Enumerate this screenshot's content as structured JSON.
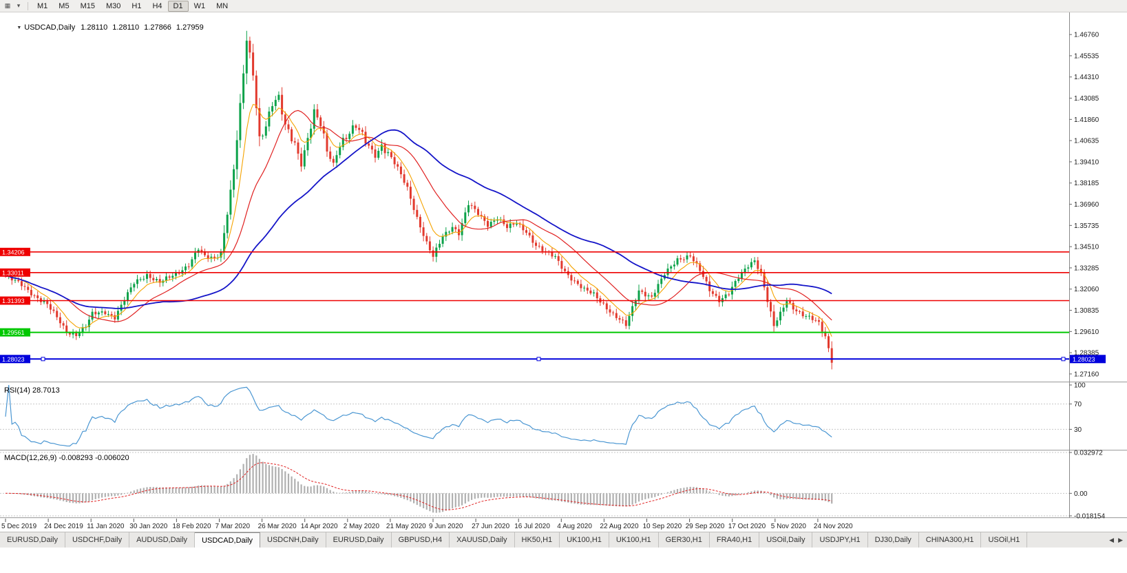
{
  "icons": {
    "collapse": "▼",
    "toolbar_chart": "▦",
    "toolbar_menu": "▾",
    "tab_scroll_left": "◀",
    "tab_scroll_right": "▶"
  },
  "toolbar": {
    "timeframes": [
      "M1",
      "M5",
      "M15",
      "M30",
      "H1",
      "H4",
      "D1",
      "W1",
      "MN"
    ],
    "active_timeframe": "D1"
  },
  "chart": {
    "title": "USDCAD,Daily",
    "ohlc": {
      "open": "1.28110",
      "high": "1.28110",
      "low": "1.27866",
      "close": "1.27959"
    }
  },
  "indicators": {
    "rsi_label": "RSI(14) 28.7013",
    "macd_label": "MACD(12,26,9) -0.008293 -0.006020"
  },
  "tabbar": {
    "active_index": 3,
    "tabs": [
      "EURUSD,Daily",
      "USDCHF,Daily",
      "AUDUSD,Daily",
      "USDCAD,Daily",
      "USDCNH,Daily",
      "EURUSD,Daily",
      "GBPUSD,H4",
      "XAUUSD,Daily",
      "HK50,H1",
      "UK100,H1",
      "UK100,H1",
      "GER30,H1",
      "FRA40,H1",
      "USOil,Daily",
      "USDJPY,H1",
      "DJ30,Daily",
      "CHINA300,H1",
      "USOil,H1"
    ]
  },
  "chart_data": {
    "type": "candlestick",
    "symbol": "USDCAD",
    "timeframe": "Daily",
    "candle_count": 258,
    "price_range": {
      "top": 1.478,
      "bottom": 1.268
    },
    "price_ticks": [
      "1.46760",
      "1.45535",
      "1.44310",
      "1.43085",
      "1.41860",
      "1.40635",
      "1.39410",
      "1.38185",
      "1.36960",
      "1.35735",
      "1.34510",
      "1.33285",
      "1.32060",
      "1.30835",
      "1.29610",
      "1.28385",
      "1.27160"
    ],
    "date_labels": [
      "5 Dec 2019",
      "24 Dec 2019",
      "11 Jan 2020",
      "30 Jan 2020",
      "18 Feb 2020",
      "7 Mar 2020",
      "26 Mar 2020",
      "14 Apr 2020",
      "2 May 2020",
      "21 May 2020",
      "9 Jun 2020",
      "27 Jun 2020",
      "16 Jul 2020",
      "4 Aug 2020",
      "22 Aug 2020",
      "10 Sep 2020",
      "29 Sep 2020",
      "17 Oct 2020",
      "5 Nov 2020",
      "24 Nov 2020"
    ],
    "close_anchors": [
      [
        0,
        1.328
      ],
      [
        5,
        1.323
      ],
      [
        9,
        1.317
      ],
      [
        13,
        1.3115
      ],
      [
        16,
        1.304
      ],
      [
        19,
        1.296
      ],
      [
        22,
        1.2945
      ],
      [
        25,
        1.299
      ],
      [
        27,
        1.306
      ],
      [
        31,
        1.3075
      ],
      [
        34,
        1.3045
      ],
      [
        40,
        1.324
      ],
      [
        44,
        1.329
      ],
      [
        48,
        1.3245
      ],
      [
        53,
        1.329
      ],
      [
        57,
        1.335
      ],
      [
        60,
        1.344
      ],
      [
        62,
        1.339
      ],
      [
        65,
        1.338
      ],
      [
        67,
        1.342
      ],
      [
        69,
        1.365
      ],
      [
        71,
        1.39
      ],
      [
        73,
        1.425
      ],
      [
        75,
        1.464
      ],
      [
        77,
        1.445
      ],
      [
        79,
        1.408
      ],
      [
        81,
        1.416
      ],
      [
        83,
        1.428
      ],
      [
        85,
        1.43
      ],
      [
        87,
        1.414
      ],
      [
        90,
        1.405
      ],
      [
        92,
        1.393
      ],
      [
        94,
        1.408
      ],
      [
        96,
        1.422
      ],
      [
        98,
        1.415
      ],
      [
        100,
        1.4
      ],
      [
        102,
        1.393
      ],
      [
        104,
        1.405
      ],
      [
        106,
        1.409
      ],
      [
        109,
        1.414
      ],
      [
        112,
        1.406
      ],
      [
        115,
        1.398
      ],
      [
        117,
        1.404
      ],
      [
        119,
        1.399
      ],
      [
        122,
        1.39
      ],
      [
        125,
        1.379
      ],
      [
        128,
        1.362
      ],
      [
        131,
        1.347
      ],
      [
        133,
        1.339
      ],
      [
        136,
        1.351
      ],
      [
        139,
        1.357
      ],
      [
        141,
        1.353
      ],
      [
        144,
        1.3695
      ],
      [
        147,
        1.364
      ],
      [
        150,
        1.358
      ],
      [
        153,
        1.362
      ],
      [
        156,
        1.356
      ],
      [
        159,
        1.3585
      ],
      [
        162,
        1.354
      ],
      [
        165,
        1.346
      ],
      [
        168,
        1.3415
      ],
      [
        171,
        1.339
      ],
      [
        174,
        1.331
      ],
      [
        177,
        1.325
      ],
      [
        180,
        1.32
      ],
      [
        183,
        1.3175
      ],
      [
        186,
        1.312
      ],
      [
        189,
        1.306
      ],
      [
        193,
        1.2995
      ],
      [
        197,
        1.32
      ],
      [
        201,
        1.316
      ],
      [
        205,
        1.329
      ],
      [
        209,
        1.338
      ],
      [
        213,
        1.34
      ],
      [
        216,
        1.331
      ],
      [
        219,
        1.32
      ],
      [
        222,
        1.3145
      ],
      [
        225,
        1.3185
      ],
      [
        228,
        1.327
      ],
      [
        231,
        1.334
      ],
      [
        233,
        1.3375
      ],
      [
        235,
        1.33
      ],
      [
        237,
        1.314
      ],
      [
        239,
        1.299
      ],
      [
        241,
        1.306
      ],
      [
        243,
        1.314
      ],
      [
        245,
        1.31
      ],
      [
        248,
        1.306
      ],
      [
        251,
        1.303
      ],
      [
        253,
        1.3005
      ],
      [
        255,
        1.293
      ],
      [
        257,
        1.2796
      ]
    ],
    "moving_averages": [
      {
        "period": 8,
        "type": "ema",
        "color": "#f5a300",
        "width": 1.1
      },
      {
        "period": 20,
        "type": "sma",
        "color": "#e02020",
        "width": 1.2
      },
      {
        "period": 50,
        "type": "sma",
        "color": "#1414c8",
        "width": 1.8
      }
    ],
    "hlines": [
      {
        "price": 1.34206,
        "label": "1.34206",
        "color": "#ee0000",
        "width": 1.6,
        "selected": false
      },
      {
        "price": 1.33011,
        "label": "1.33011",
        "color": "#ee0000",
        "width": 1.6,
        "selected": false
      },
      {
        "price": 1.31393,
        "label": "1.31393",
        "color": "#ee0000",
        "width": 1.6,
        "selected": false
      },
      {
        "price": 1.29561,
        "label": "1.29561",
        "color": "#00c800",
        "width": 2,
        "selected": false
      },
      {
        "price": 1.28023,
        "label": "1.28023",
        "color": "#0000dc",
        "width": 2,
        "selected": true
      }
    ],
    "rsi": {
      "period": 14,
      "last_value": "28.7013",
      "levels": [
        "100",
        "70",
        "30"
      ],
      "level_values": [
        100,
        70,
        30
      ],
      "color": "#4a96d2"
    },
    "macd": {
      "fast": 12,
      "slow": 26,
      "signal": 9,
      "values_text": "-0.008293 -0.006020",
      "levels": [
        "0.032972",
        "0.00",
        "-0.018154"
      ],
      "scale_max": 0.032972,
      "scale_min": -0.018154,
      "hist_color": "#b0b0b0",
      "signal_color": "#e02020"
    },
    "colors": {
      "up": "#0ca24a",
      "down": "#e23a2e"
    }
  }
}
